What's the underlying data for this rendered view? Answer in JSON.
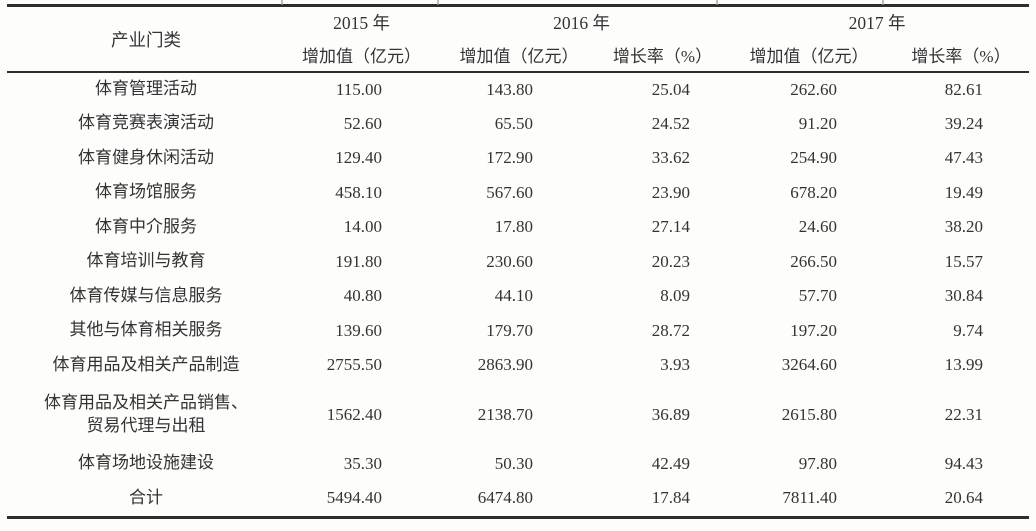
{
  "table": {
    "header": {
      "category": "产业门类",
      "year_groups": [
        {
          "label": "2015 年",
          "sub": [
            "增加值（亿元）"
          ]
        },
        {
          "label": "2016 年",
          "sub": [
            "增加值（亿元）",
            "增长率（%）"
          ]
        },
        {
          "label": "2017 年",
          "sub": [
            "增加值（亿元）",
            "增长率（%）"
          ]
        }
      ]
    },
    "rows": [
      {
        "category": "体育管理活动",
        "values": [
          "115.00",
          "143.80",
          "25.04",
          "262.60",
          "82.61"
        ]
      },
      {
        "category": "体育竞赛表演活动",
        "values": [
          "52.60",
          "65.50",
          "24.52",
          "91.20",
          "39.24"
        ]
      },
      {
        "category": "体育健身休闲活动",
        "values": [
          "129.40",
          "172.90",
          "33.62",
          "254.90",
          "47.43"
        ]
      },
      {
        "category": "体育场馆服务",
        "values": [
          "458.10",
          "567.60",
          "23.90",
          "678.20",
          "19.49"
        ]
      },
      {
        "category": "体育中介服务",
        "values": [
          "14.00",
          "17.80",
          "27.14",
          "24.60",
          "38.20"
        ]
      },
      {
        "category": "体育培训与教育",
        "values": [
          "191.80",
          "230.60",
          "20.23",
          "266.50",
          "15.57"
        ]
      },
      {
        "category": "体育传媒与信息服务",
        "values": [
          "40.80",
          "44.10",
          "8.09",
          "57.70",
          "30.84"
        ]
      },
      {
        "category": "其他与体育相关服务",
        "values": [
          "139.60",
          "179.70",
          "28.72",
          "197.20",
          "9.74"
        ]
      },
      {
        "category": "体育用品及相关产品制造",
        "values": [
          "2755.50",
          "2863.90",
          "3.93",
          "3264.60",
          "13.99"
        ]
      },
      {
        "category": "体育用品及相关产品销售、\n贸易代理与出租",
        "values": [
          "1562.40",
          "2138.70",
          "36.89",
          "2615.80",
          "22.31"
        ]
      },
      {
        "category": "体育场地设施建设",
        "values": [
          "35.30",
          "50.30",
          "42.49",
          "97.80",
          "94.43"
        ]
      },
      {
        "category": "合计",
        "values": [
          "5494.40",
          "6474.80",
          "17.84",
          "7811.40",
          "20.64"
        ]
      }
    ]
  }
}
